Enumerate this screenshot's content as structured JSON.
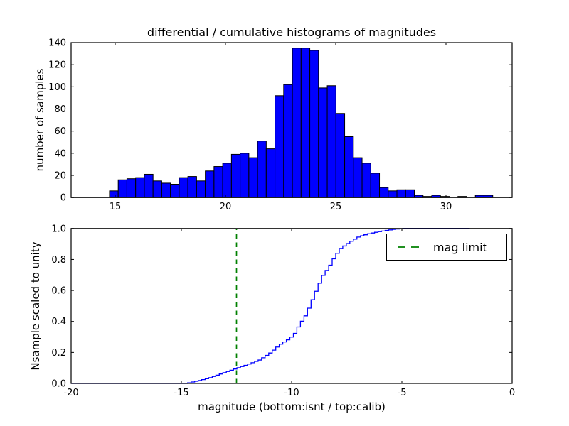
{
  "figure": {
    "title": "differential / cumulative histograms of magnitudes",
    "background": "#ffffff",
    "text_color": "#000000"
  },
  "chart_data": [
    {
      "type": "bar",
      "subplot": "top",
      "title": "differential / cumulative histograms of magnitudes",
      "ylabel": "number of samples",
      "xlim": [
        13,
        33
      ],
      "ylim": [
        0,
        140
      ],
      "xticks": [
        "15",
        "20",
        "25",
        "30"
      ],
      "xtick_values": [
        15,
        20,
        25,
        30
      ],
      "yticks": [
        "0",
        "20",
        "40",
        "60",
        "80",
        "100",
        "120",
        "140"
      ],
      "ytick_values": [
        0,
        20,
        40,
        60,
        80,
        100,
        120,
        140
      ],
      "grid": false,
      "bar_color": "#0000ff",
      "bar_edge_color": "#000000",
      "bin_start": 14.74,
      "bin_width": 0.395,
      "counts": [
        6,
        16,
        17,
        18,
        21,
        15,
        13,
        12,
        18,
        19,
        15,
        24,
        28,
        31,
        39,
        40,
        36,
        51,
        44,
        92,
        102,
        135,
        135,
        133,
        99,
        101,
        76,
        55,
        36,
        31,
        22,
        9,
        6,
        7,
        7,
        2,
        1,
        2,
        1,
        0,
        1,
        0,
        2,
        2
      ]
    },
    {
      "type": "line",
      "subplot": "bottom",
      "style": "cumulative-step",
      "ylabel": "Nsample scaled to unity",
      "xlabel": "magnitude (bottom:isnt / top:calib)",
      "xlim": [
        -20,
        0
      ],
      "ylim": [
        0,
        1.0
      ],
      "xticks": [
        "-20",
        "-15",
        "-10",
        "-5",
        "0"
      ],
      "xtick_values": [
        -20,
        -15,
        -10,
        -5,
        0
      ],
      "yticks": [
        "0.0",
        "0.2",
        "0.4",
        "0.6",
        "0.8",
        "1.0"
      ],
      "ytick_values": [
        0,
        0.2,
        0.4,
        0.6,
        0.8,
        1.0
      ],
      "grid": false,
      "line_color": "#0000ff",
      "step_width": 0.16,
      "cumulative_points": [
        [
          -20,
          0
        ],
        [
          -14.85,
          0
        ],
        [
          -14.6,
          0.008
        ],
        [
          -14.2,
          0.02
        ],
        [
          -13.8,
          0.035
        ],
        [
          -13.4,
          0.055
        ],
        [
          -13.0,
          0.075
        ],
        [
          -12.5,
          0.1
        ],
        [
          -12.0,
          0.125
        ],
        [
          -11.5,
          0.152
        ],
        [
          -11.0,
          0.2
        ],
        [
          -10.6,
          0.25
        ],
        [
          -10.2,
          0.285
        ],
        [
          -9.95,
          0.315
        ],
        [
          -9.7,
          0.38
        ],
        [
          -9.4,
          0.445
        ],
        [
          -9.15,
          0.53
        ],
        [
          -8.9,
          0.615
        ],
        [
          -8.65,
          0.695
        ],
        [
          -8.35,
          0.755
        ],
        [
          -8.1,
          0.82
        ],
        [
          -7.85,
          0.87
        ],
        [
          -7.45,
          0.91
        ],
        [
          -7.0,
          0.948
        ],
        [
          -6.5,
          0.968
        ],
        [
          -6.0,
          0.982
        ],
        [
          -5.5,
          0.993
        ],
        [
          -5.0,
          1.0
        ],
        [
          -1.9,
          1.0
        ]
      ],
      "mag_limit_line": {
        "x": -12.5,
        "color": "#008000",
        "style": "dashed",
        "label": "mag limit"
      },
      "legend": {
        "label": "mag limit",
        "position": "upper right",
        "marker_color": "#008000"
      }
    }
  ]
}
